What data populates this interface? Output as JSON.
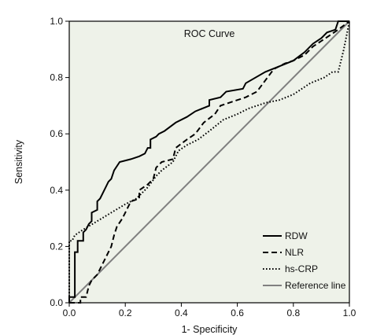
{
  "chart_data": {
    "type": "line",
    "title": "ROC Curve",
    "xlabel": "1- Specificity",
    "ylabel": "Sensitivity",
    "xlim": [
      0,
      1
    ],
    "ylim": [
      0,
      1
    ],
    "x_ticks": [
      "0.0",
      "0.2",
      "0.4",
      "0.6",
      "0.8",
      "1.0"
    ],
    "y_ticks": [
      "0.0",
      "0.2",
      "0.4",
      "0.6",
      "0.8",
      "1.0"
    ],
    "grid": false,
    "legend_position": "bottom-right",
    "background_color": "#eef2e9",
    "series": [
      {
        "name": "RDW",
        "style": "solid",
        "color": "#000000",
        "points": [
          [
            0,
            0
          ],
          [
            0,
            0.02
          ],
          [
            0.02,
            0.02
          ],
          [
            0.02,
            0.18
          ],
          [
            0.03,
            0.18
          ],
          [
            0.03,
            0.22
          ],
          [
            0.05,
            0.22
          ],
          [
            0.05,
            0.25
          ],
          [
            0.06,
            0.26
          ],
          [
            0.07,
            0.28
          ],
          [
            0.08,
            0.29
          ],
          [
            0.08,
            0.32
          ],
          [
            0.1,
            0.33
          ],
          [
            0.1,
            0.36
          ],
          [
            0.11,
            0.37
          ],
          [
            0.12,
            0.39
          ],
          [
            0.13,
            0.41
          ],
          [
            0.14,
            0.43
          ],
          [
            0.15,
            0.44
          ],
          [
            0.16,
            0.47
          ],
          [
            0.18,
            0.5
          ],
          [
            0.22,
            0.51
          ],
          [
            0.25,
            0.52
          ],
          [
            0.27,
            0.53
          ],
          [
            0.28,
            0.55
          ],
          [
            0.29,
            0.55
          ],
          [
            0.29,
            0.58
          ],
          [
            0.31,
            0.59
          ],
          [
            0.32,
            0.6
          ],
          [
            0.34,
            0.61
          ],
          [
            0.38,
            0.64
          ],
          [
            0.42,
            0.66
          ],
          [
            0.45,
            0.68
          ],
          [
            0.5,
            0.7
          ],
          [
            0.5,
            0.72
          ],
          [
            0.54,
            0.73
          ],
          [
            0.56,
            0.75
          ],
          [
            0.62,
            0.76
          ],
          [
            0.63,
            0.78
          ],
          [
            0.7,
            0.82
          ],
          [
            0.75,
            0.84
          ],
          [
            0.8,
            0.86
          ],
          [
            0.84,
            0.89
          ],
          [
            0.87,
            0.92
          ],
          [
            0.9,
            0.94
          ],
          [
            0.92,
            0.96
          ],
          [
            0.95,
            0.97
          ],
          [
            0.96,
            1
          ],
          [
            1,
            1
          ]
        ]
      },
      {
        "name": "NLR",
        "style": "dashed",
        "color": "#000000",
        "points": [
          [
            0,
            0
          ],
          [
            0.04,
            0
          ],
          [
            0.04,
            0.02
          ],
          [
            0.06,
            0.02
          ],
          [
            0.07,
            0.06
          ],
          [
            0.08,
            0.08
          ],
          [
            0.1,
            0.1
          ],
          [
            0.11,
            0.12
          ],
          [
            0.12,
            0.14
          ],
          [
            0.13,
            0.16
          ],
          [
            0.15,
            0.2
          ],
          [
            0.16,
            0.24
          ],
          [
            0.17,
            0.27
          ],
          [
            0.19,
            0.3
          ],
          [
            0.2,
            0.32
          ],
          [
            0.22,
            0.36
          ],
          [
            0.25,
            0.37
          ],
          [
            0.25,
            0.4
          ],
          [
            0.28,
            0.42
          ],
          [
            0.3,
            0.44
          ],
          [
            0.31,
            0.48
          ],
          [
            0.33,
            0.5
          ],
          [
            0.37,
            0.51
          ],
          [
            0.38,
            0.55
          ],
          [
            0.42,
            0.58
          ],
          [
            0.45,
            0.6
          ],
          [
            0.48,
            0.64
          ],
          [
            0.52,
            0.67
          ],
          [
            0.54,
            0.7
          ],
          [
            0.57,
            0.71
          ],
          [
            0.63,
            0.73
          ],
          [
            0.67,
            0.75
          ],
          [
            0.7,
            0.79
          ],
          [
            0.73,
            0.83
          ],
          [
            0.77,
            0.85
          ],
          [
            0.8,
            0.86
          ],
          [
            0.84,
            0.88
          ],
          [
            0.87,
            0.91
          ],
          [
            0.9,
            0.93
          ],
          [
            0.93,
            0.95
          ],
          [
            0.96,
            0.97
          ],
          [
            1,
            1
          ]
        ]
      },
      {
        "name": "hs-CRP",
        "style": "dotted",
        "color": "#000000",
        "points": [
          [
            0,
            0
          ],
          [
            0,
            0.22
          ],
          [
            0.01,
            0.22
          ],
          [
            0.02,
            0.24
          ],
          [
            0.05,
            0.26
          ],
          [
            0.1,
            0.29
          ],
          [
            0.15,
            0.32
          ],
          [
            0.2,
            0.35
          ],
          [
            0.24,
            0.37
          ],
          [
            0.28,
            0.41
          ],
          [
            0.31,
            0.45
          ],
          [
            0.33,
            0.47
          ],
          [
            0.37,
            0.5
          ],
          [
            0.39,
            0.54
          ],
          [
            0.42,
            0.56
          ],
          [
            0.46,
            0.58
          ],
          [
            0.5,
            0.61
          ],
          [
            0.55,
            0.65
          ],
          [
            0.6,
            0.67
          ],
          [
            0.64,
            0.69
          ],
          [
            0.7,
            0.71
          ],
          [
            0.75,
            0.72
          ],
          [
            0.8,
            0.74
          ],
          [
            0.86,
            0.78
          ],
          [
            0.91,
            0.8
          ],
          [
            0.94,
            0.82
          ],
          [
            0.96,
            0.82
          ],
          [
            0.98,
            0.9
          ],
          [
            1,
            1
          ]
        ]
      },
      {
        "name": "Reference line",
        "style": "solid",
        "color": "#808080",
        "points": [
          [
            0,
            0
          ],
          [
            1,
            1
          ]
        ]
      }
    ]
  }
}
